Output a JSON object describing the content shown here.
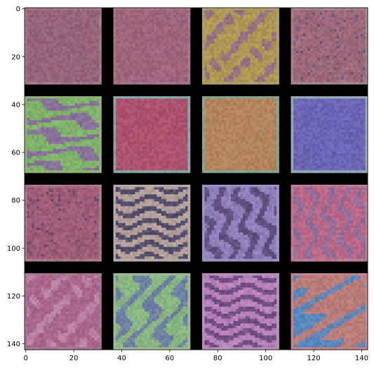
{
  "chart_data": {
    "type": "heatmap",
    "title": "",
    "xlabel": "",
    "ylabel": "",
    "xlim": [
      -0.5,
      142.5
    ],
    "ylim": [
      142.5,
      -0.5
    ],
    "x_ticks": [
      0,
      20,
      40,
      60,
      80,
      100,
      120,
      140
    ],
    "y_ticks": [
      0,
      20,
      40,
      60,
      80,
      100,
      120,
      140
    ],
    "x_tick_labels": [
      "0",
      "20",
      "40",
      "60",
      "80",
      "100",
      "120",
      "140"
    ],
    "y_tick_labels": [
      "0",
      "20",
      "40",
      "60",
      "80",
      "100",
      "120",
      "140"
    ],
    "background_color": "#000000",
    "grid": {
      "rows": 4,
      "cols": 4,
      "tile_size": 32,
      "spacing": 37
    },
    "tiles": [
      {
        "row": 0,
        "col": 0,
        "pattern": "noise",
        "base": "#9c6278",
        "accent": "#7e6e86",
        "border": "#9b6a7c"
      },
      {
        "row": 0,
        "col": 1,
        "pattern": "noise",
        "base": "#a2657a",
        "accent": "#8e6680",
        "border": "#a0687c"
      },
      {
        "row": 0,
        "col": 2,
        "pattern": "blobs",
        "base": "#b6a246",
        "accent": "#8e6a8e",
        "border": "#a89a56"
      },
      {
        "row": 0,
        "col": 3,
        "pattern": "dashes",
        "base": "#a86c7c",
        "accent": "#6a5a78",
        "border": "#9c7a86"
      },
      {
        "row": 1,
        "col": 0,
        "pattern": "waves",
        "base": "#7ec060",
        "accent": "#8a6aa0",
        "border": "#86b064"
      },
      {
        "row": 1,
        "col": 1,
        "pattern": "noise",
        "base": "#b0506c",
        "accent": "#9a5a80",
        "border": "#7aa6a2"
      },
      {
        "row": 1,
        "col": 2,
        "pattern": "noise",
        "base": "#b6865a",
        "accent": "#a8806a",
        "border": "#7aa08a"
      },
      {
        "row": 1,
        "col": 3,
        "pattern": "noise",
        "base": "#6a62b6",
        "accent": "#7a74b0",
        "border": "#8aa6b6"
      },
      {
        "row": 2,
        "col": 0,
        "pattern": "dashes",
        "base": "#a8607a",
        "accent": "#6e4a6a",
        "border": "#a06e80"
      },
      {
        "row": 2,
        "col": 1,
        "pattern": "stripes",
        "base": "#c2aca2",
        "accent": "#4a4866",
        "border": "#b4a4a4"
      },
      {
        "row": 2,
        "col": 2,
        "pattern": "waves",
        "base": "#9a8ac8",
        "accent": "#5a4a78",
        "border": "#9888c0"
      },
      {
        "row": 2,
        "col": 3,
        "pattern": "waves",
        "base": "#c46682",
        "accent": "#8e6e9a",
        "border": "#b87088"
      },
      {
        "row": 3,
        "col": 0,
        "pattern": "blobs",
        "base": "#a45e86",
        "accent": "#c08aa8",
        "border": "#a06888"
      },
      {
        "row": 3,
        "col": 1,
        "pattern": "waves",
        "base": "#8ec27a",
        "accent": "#6a7aa8",
        "border": "#96b888"
      },
      {
        "row": 3,
        "col": 2,
        "pattern": "stripes",
        "base": "#c28ac0",
        "accent": "#6a4a80",
        "border": "#b48ab8"
      },
      {
        "row": 3,
        "col": 3,
        "pattern": "waves",
        "base": "#d07a6a",
        "accent": "#4a8ac6",
        "border": "#c47a80"
      }
    ]
  }
}
